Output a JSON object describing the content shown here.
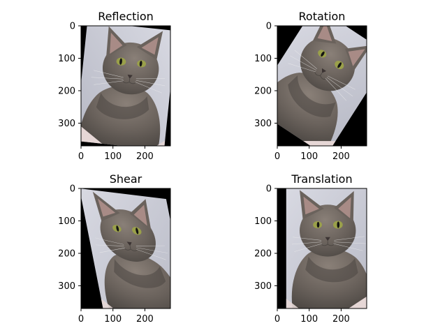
{
  "chart_data": {
    "type": "image-grid",
    "panels": [
      {
        "title": "Reflection",
        "transform": "reflection",
        "x_ticks": [
          0,
          100,
          200
        ],
        "y_ticks": [
          0,
          100,
          200,
          300
        ],
        "xlim": [
          0,
          280
        ],
        "ylim": [
          370,
          0
        ]
      },
      {
        "title": "Rotation",
        "transform": "rotation",
        "x_ticks": [
          0,
          100,
          200
        ],
        "y_ticks": [
          0,
          100,
          200,
          300
        ],
        "xlim": [
          0,
          280
        ],
        "ylim": [
          370,
          0
        ]
      },
      {
        "title": "Shear",
        "transform": "shear",
        "x_ticks": [
          0,
          100,
          200
        ],
        "y_ticks": [
          0,
          100,
          200,
          300
        ],
        "xlim": [
          0,
          280
        ],
        "ylim": [
          370,
          0
        ]
      },
      {
        "title": "Translation",
        "transform": "translation",
        "x_ticks": [
          0,
          100,
          200
        ],
        "y_ticks": [
          0,
          100,
          200,
          300
        ],
        "xlim": [
          0,
          280
        ],
        "ylim": [
          370,
          0
        ]
      }
    ]
  },
  "colors": {
    "background_fill": "#000000",
    "wall_light": "#d8d9e2",
    "wall_mid": "#b7b9c5",
    "fur_dark": "#4b4642",
    "fur_mid": "#6a625c",
    "fur_light": "#8a8078",
    "eye": "#9aa04a",
    "pupil": "#141414",
    "ear_inner": "#b3938d",
    "nose": "#3c3433",
    "whisker": "#eeeeee",
    "table_pink": "#e6d7d6"
  }
}
